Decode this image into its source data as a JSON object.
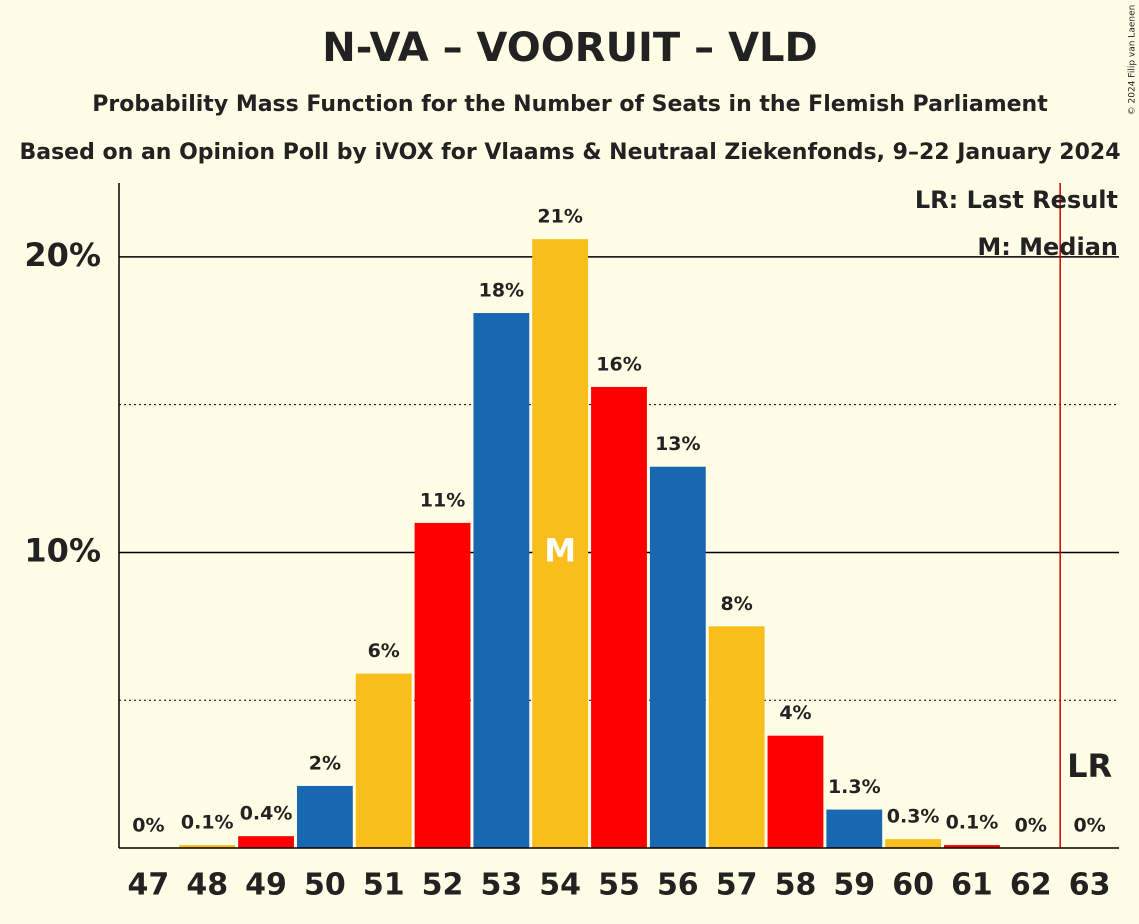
{
  "chart_data": {
    "type": "bar",
    "title": "N-VA – VOORUIT – VLD",
    "subtitle": "Probability Mass Function for the Number of Seats in the Flemish Parliament",
    "source_line": "Based on an Opinion Poll by iVOX for Vlaams & Neutraal Ziekenfonds, 9–22 January 2024",
    "copyright": "© 2024 Filip van Laenen",
    "categories": [
      47,
      48,
      49,
      50,
      51,
      52,
      53,
      54,
      55,
      56,
      57,
      58,
      59,
      60,
      61,
      62,
      63
    ],
    "values": [
      0,
      0.1,
      0.4,
      2.1,
      5.9,
      11.0,
      18.1,
      20.6,
      15.6,
      12.9,
      7.5,
      3.8,
      1.3,
      0.3,
      0.1,
      0,
      0
    ],
    "value_labels": [
      "0%",
      "0.1%",
      "0.4%",
      "2%",
      "6%",
      "11%",
      "18%",
      "21%",
      "16%",
      "13%",
      "8%",
      "4%",
      "1.3%",
      "0.3%",
      "0.1%",
      "0%",
      "0%"
    ],
    "colors": [
      "#1767b1",
      "#f9bd1c",
      "#ff0000",
      "#1767b1",
      "#f9bd1c",
      "#ff0000",
      "#1767b1",
      "#f9bd1c",
      "#ff0000",
      "#1767b1",
      "#f9bd1c",
      "#ff0000",
      "#1767b1",
      "#f9bd1c",
      "#ff0000",
      "#1767b1",
      "#f9bd1c"
    ],
    "ylim": [
      0,
      22.5
    ],
    "yticks": [
      {
        "value": 10,
        "label": "10%"
      },
      {
        "value": 20,
        "label": "20%"
      }
    ],
    "minor_yticks": [
      5,
      15
    ],
    "median": 54,
    "median_marker": "M",
    "last_result": 63,
    "last_result_marker": "LR",
    "last_result_color": "#cc0000",
    "legend": [
      "LR: Last Result",
      "M: Median"
    ]
  }
}
